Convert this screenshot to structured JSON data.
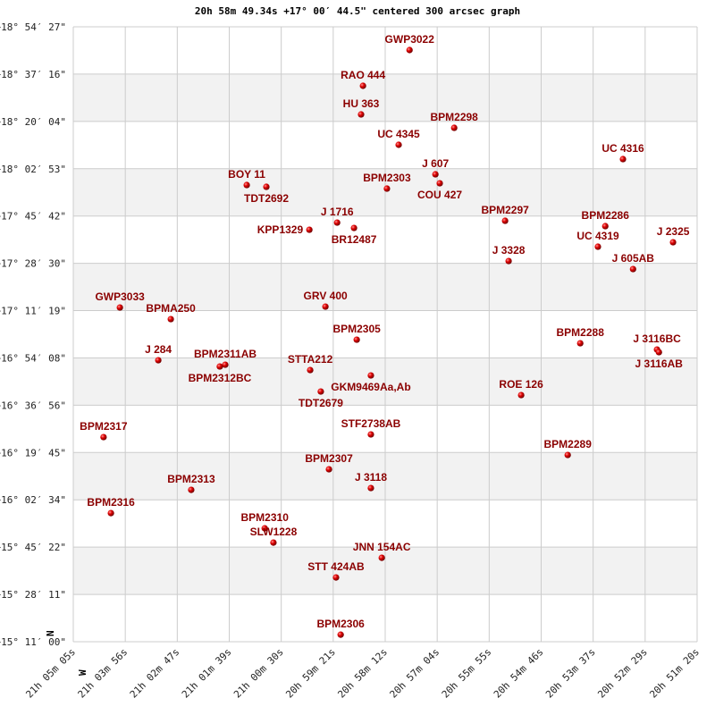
{
  "chart_data": {
    "type": "scatter",
    "title": "20h 58m 49.34s +17° 00′ 44.5\" centered 300 arcsec graph",
    "x_unit": "RA (hours)",
    "y_unit": "Dec (degrees)",
    "xlim": [
      21.08472,
      20.85556
    ],
    "ylim": [
      15.18333,
      18.9075
    ],
    "grid": true,
    "x_direction": "RA decreasing to the right",
    "compass": {
      "north": "N",
      "west": "W"
    },
    "x_ticks": [
      "21h 05m 05s",
      "21h 03m 56s",
      "21h 02m 47s",
      "21h 01m 39s",
      "21h 00m 30s",
      "20h 59m 21s",
      "20h 58m 12s",
      "20h 57m 04s",
      "20h 55m 55s",
      "20h 54m 46s",
      "20h 53m 37s",
      "20h 52m 29s",
      "20h 51m 20s"
    ],
    "y_ticks": [
      "+18° 54′ 27\"",
      "+18° 37′ 16\"",
      "+18° 20′ 04\"",
      "+18° 02′ 53\"",
      "+17° 45′ 42\"",
      "+17° 28′ 30\"",
      "+17° 11′ 19\"",
      "+16° 54′ 08\"",
      "+16° 36′ 56\"",
      "+16° 19′ 45\"",
      "+16° 02′ 34\"",
      "+15° 45′ 22\"",
      "+15° 28′ 11\"",
      "+15° 11′ 00\""
    ],
    "colors": {
      "marker": "#dd0000",
      "label": "#8b0000",
      "band": "#f2f2f2",
      "grid": "#cccccc"
    },
    "points": [
      {
        "name": "GWP3022",
        "ra": 20.9612,
        "dec": 18.7667
      },
      {
        "name": "RAO 444",
        "ra": 20.9783,
        "dec": 18.5502
      },
      {
        "name": "HU  363",
        "ra": 20.979,
        "dec": 18.3769
      },
      {
        "name": "BPM2298",
        "ra": 20.9448,
        "dec": 18.2957
      },
      {
        "name": "UC 4345",
        "ra": 20.9652,
        "dec": 18.1929
      },
      {
        "name": "UC 4316",
        "ra": 20.8828,
        "dec": 18.1062
      },
      {
        "name": "J  607",
        "ra": 20.9517,
        "dec": 18.0142
      },
      {
        "name": "COU 427",
        "ra": 20.9501,
        "dec": 17.96
      },
      {
        "name": "BOY 11",
        "ra": 21.021,
        "dec": 17.9492
      },
      {
        "name": "TDT2692",
        "ra": 21.0138,
        "dec": 17.9384
      },
      {
        "name": "BPM2303",
        "ra": 20.9695,
        "dec": 17.9276
      },
      {
        "name": "BPM2297",
        "ra": 20.9261,
        "dec": 17.7327
      },
      {
        "name": "J 1716",
        "ra": 20.9878,
        "dec": 17.7218
      },
      {
        "name": "BR12487",
        "ra": 20.9816,
        "dec": 17.6893
      },
      {
        "name": "KPP1329",
        "ra": 20.998,
        "dec": 17.6785
      },
      {
        "name": "BPM2286",
        "ra": 20.8893,
        "dec": 17.7002
      },
      {
        "name": "J  2325",
        "ra": 20.8644,
        "dec": 17.6027
      },
      {
        "name": "UC 4319",
        "ra": 20.892,
        "dec": 17.5757
      },
      {
        "name": "J  3328",
        "ra": 20.9248,
        "dec": 17.489
      },
      {
        "name": "J  605AB",
        "ra": 20.8791,
        "dec": 17.4403
      },
      {
        "name": "GWP3033",
        "ra": 21.0676,
        "dec": 17.2075
      },
      {
        "name": "GRV 400",
        "ra": 20.9921,
        "dec": 17.2129
      },
      {
        "name": "BPMA250",
        "ra": 21.0489,
        "dec": 17.1371
      },
      {
        "name": "BPM2305",
        "ra": 20.9806,
        "dec": 17.0126
      },
      {
        "name": "BPM2288",
        "ra": 20.8985,
        "dec": 16.9909
      },
      {
        "name": "J  3116BC",
        "ra": 20.8703,
        "dec": 16.953
      },
      {
        "name": "J  3116AB",
        "ra": 20.8696,
        "dec": 16.9368
      },
      {
        "name": "J   284",
        "ra": 21.0535,
        "dec": 16.8881
      },
      {
        "name": "BPM2311AB",
        "ra": 21.0289,
        "dec": 16.861
      },
      {
        "name": "BPM2312BC",
        "ra": 21.0309,
        "dec": 16.8502
      },
      {
        "name": "STTA212",
        "ra": 20.9977,
        "dec": 16.8285
      },
      {
        "name": "GKM9469Aa,Ab",
        "ra": 20.9754,
        "dec": 16.796
      },
      {
        "name": "TDT2679",
        "ra": 20.9938,
        "dec": 16.6986
      },
      {
        "name": "ROE 126",
        "ra": 20.9202,
        "dec": 16.6769
      },
      {
        "name": "STF2738AB",
        "ra": 20.9754,
        "dec": 16.4387
      },
      {
        "name": "BPM2317",
        "ra": 21.0736,
        "dec": 16.4225
      },
      {
        "name": "BPM2289",
        "ra": 20.9031,
        "dec": 16.3142
      },
      {
        "name": "BPM2307",
        "ra": 20.9908,
        "dec": 16.2276
      },
      {
        "name": "J  3118",
        "ra": 20.9754,
        "dec": 16.1139
      },
      {
        "name": "BPM2313",
        "ra": 21.0414,
        "dec": 16.103
      },
      {
        "name": "BPM2316",
        "ra": 21.0709,
        "dec": 15.9623
      },
      {
        "name": "BPM2310",
        "ra": 21.0144,
        "dec": 15.8702
      },
      {
        "name": "SLW1228",
        "ra": 21.0112,
        "dec": 15.7836
      },
      {
        "name": "JNN 154AC",
        "ra": 20.9714,
        "dec": 15.6916
      },
      {
        "name": "STT 424AB",
        "ra": 20.9882,
        "dec": 15.5725
      },
      {
        "name": "BPM2306",
        "ra": 20.9865,
        "dec": 15.226
      }
    ]
  }
}
